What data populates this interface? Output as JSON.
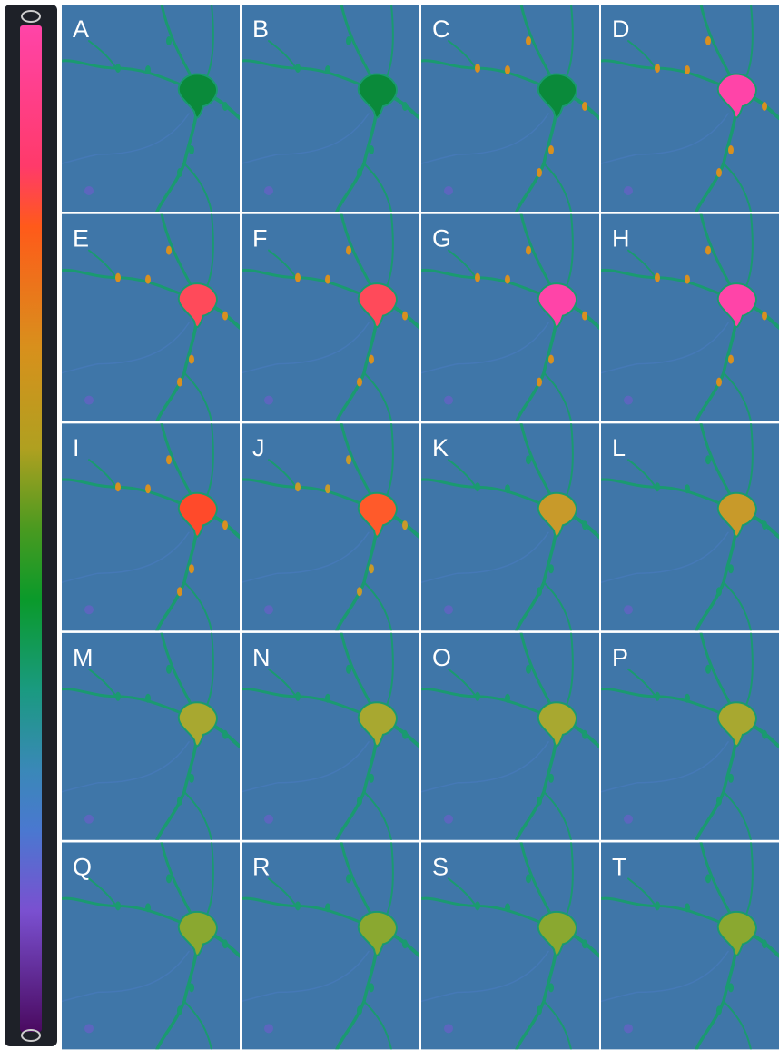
{
  "panels": {
    "labels": [
      "A",
      "B",
      "C",
      "D",
      "E",
      "F",
      "G",
      "H",
      "I",
      "J",
      "K",
      "L",
      "M",
      "N",
      "O",
      "P",
      "Q",
      "R",
      "S",
      "T"
    ]
  }
}
